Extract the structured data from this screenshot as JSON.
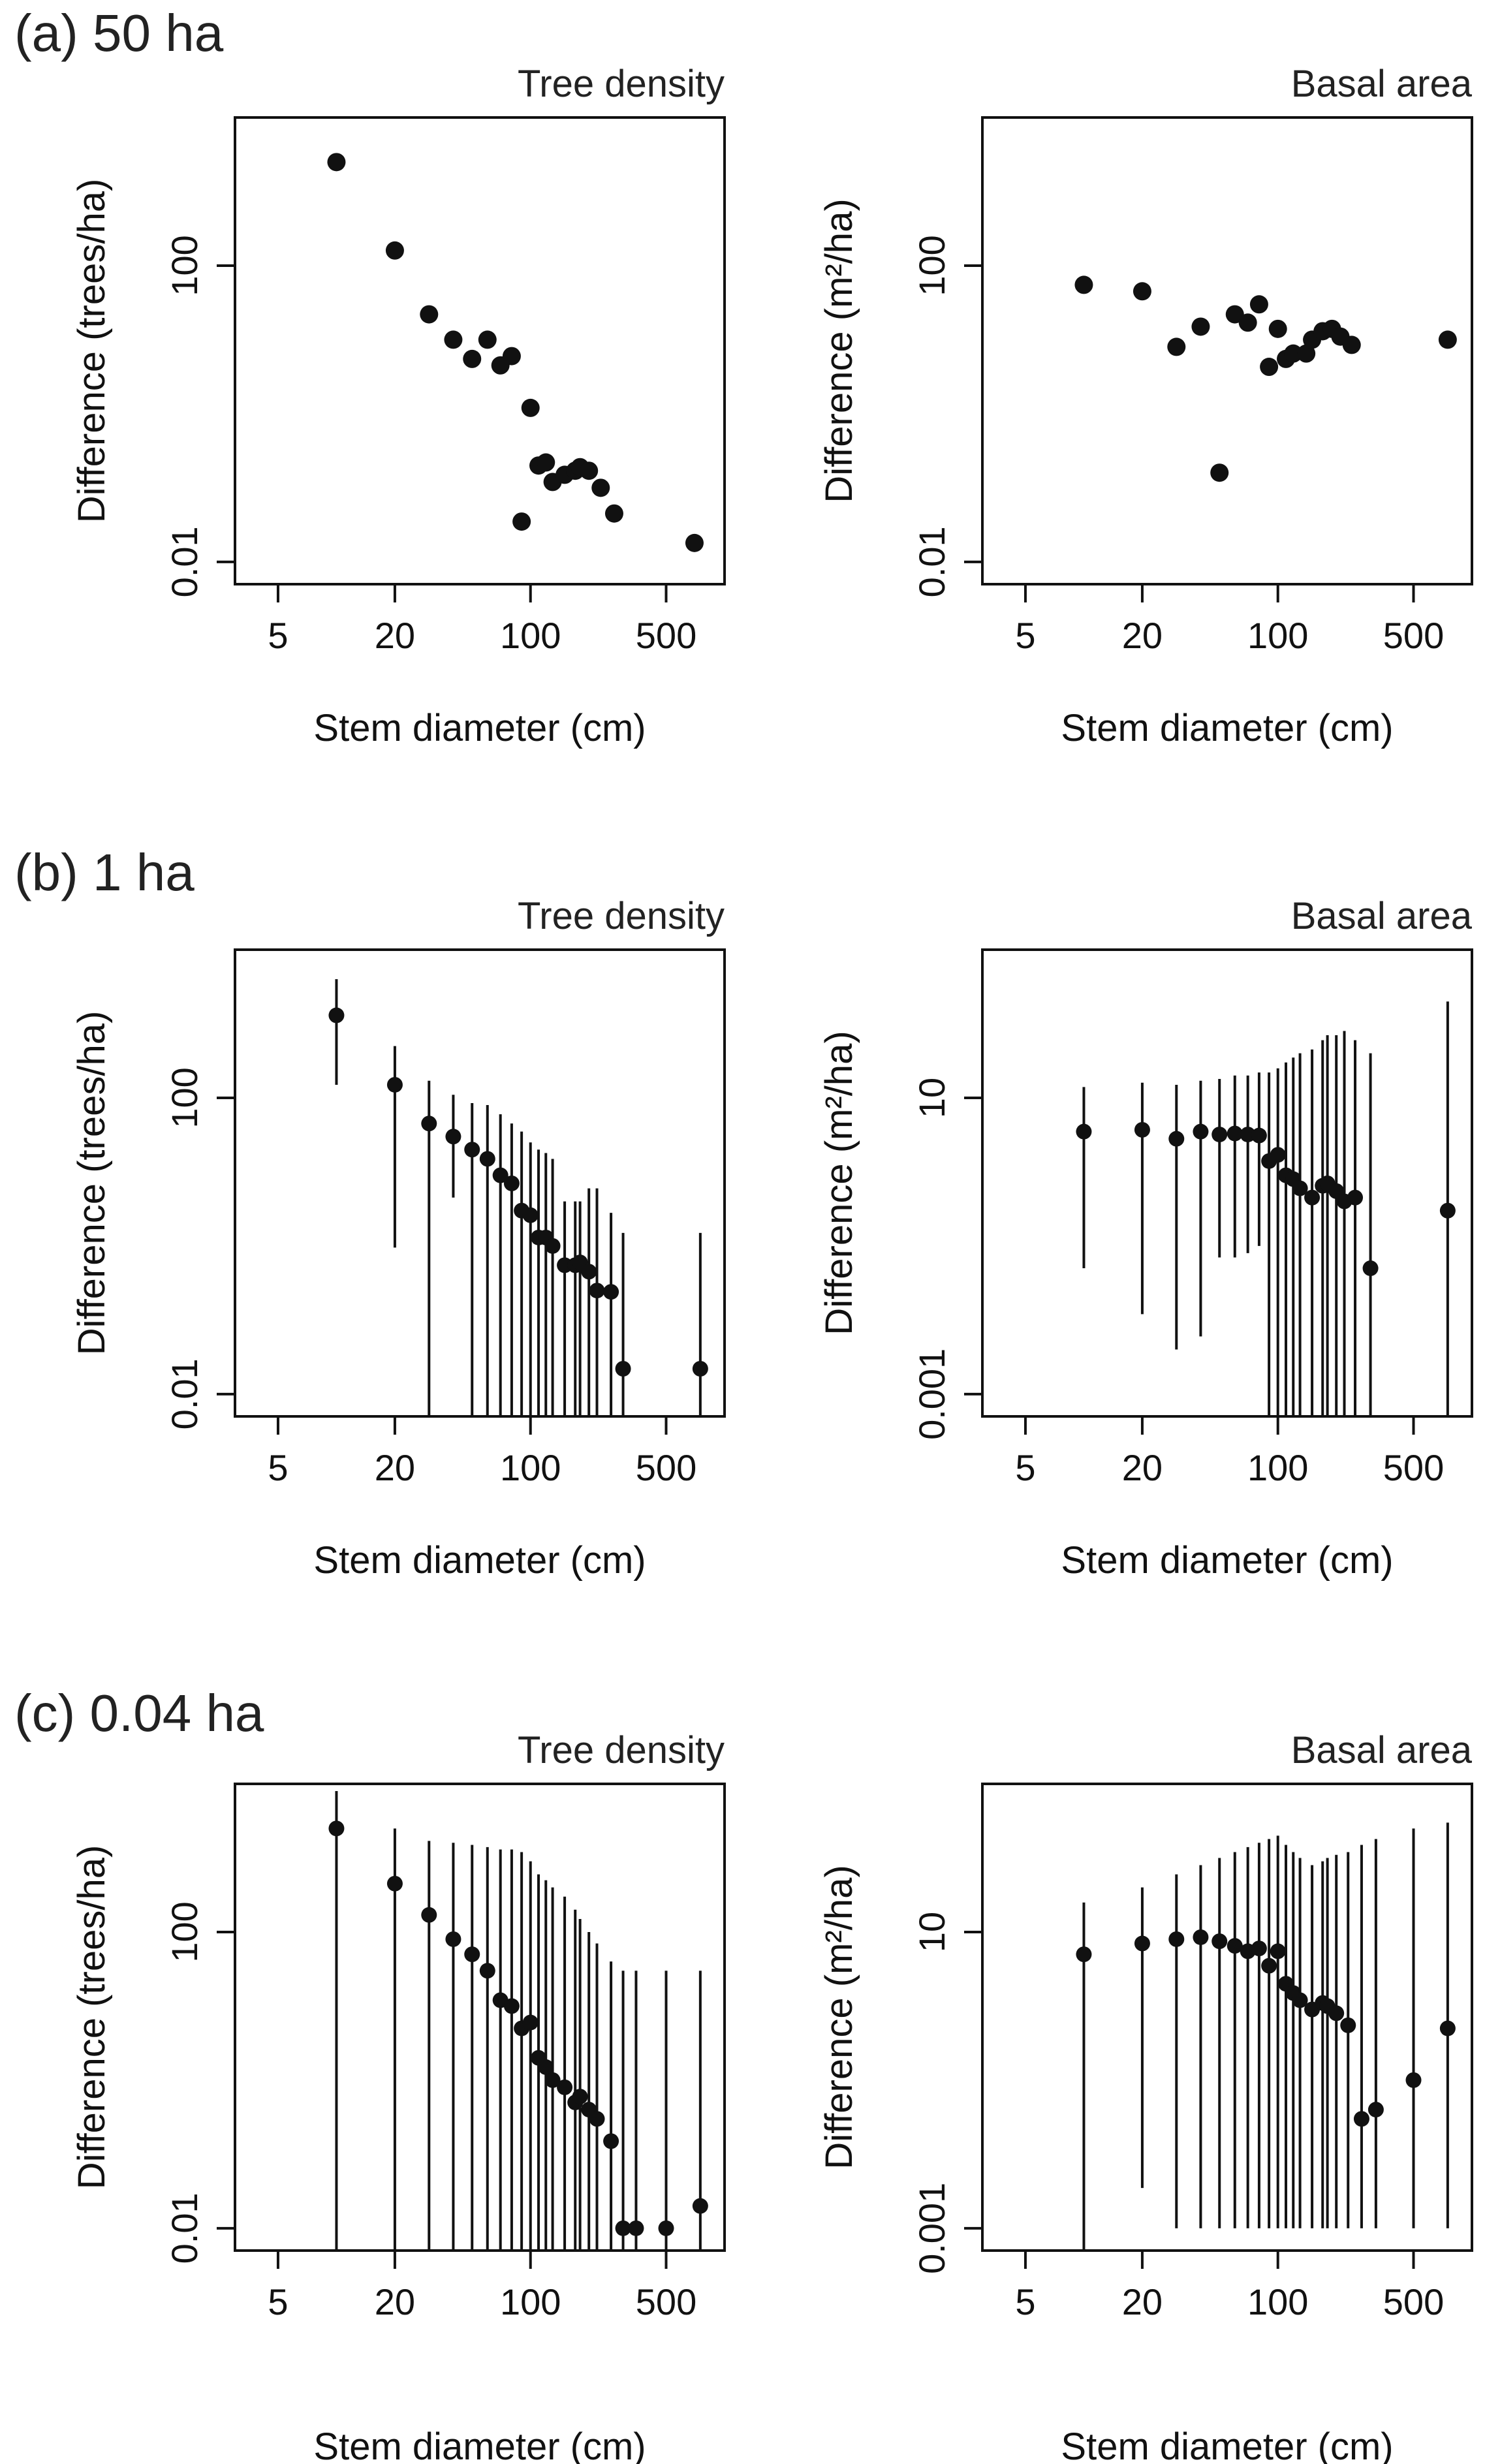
{
  "chart_data": [
    {
      "id": "a-density",
      "row": 0,
      "col": 0,
      "type": "scatter",
      "title": "Tree density",
      "xlabel": "Stem diameter (cm)",
      "ylabel": "Difference (trees/ha)",
      "xscale": "log",
      "yscale": "log",
      "xlim": [
        3,
        1000
      ],
      "ylim": [
        0.005,
        10000
      ],
      "xticks": [
        5,
        20,
        100,
        500
      ],
      "xtick_labels": [
        "5",
        "20",
        "100",
        "500"
      ],
      "yticks": [
        0.01,
        100
      ],
      "ytick_labels": [
        "0.01",
        "100"
      ],
      "points": [
        {
          "x": 10,
          "y": 2500
        },
        {
          "x": 20,
          "y": 160
        },
        {
          "x": 30,
          "y": 22
        },
        {
          "x": 40,
          "y": 10
        },
        {
          "x": 50,
          "y": 5.5
        },
        {
          "x": 60,
          "y": 10
        },
        {
          "x": 70,
          "y": 4.5
        },
        {
          "x": 80,
          "y": 6
        },
        {
          "x": 100,
          "y": 1.2
        },
        {
          "x": 110,
          "y": 0.2
        },
        {
          "x": 120,
          "y": 0.22
        },
        {
          "x": 130,
          "y": 0.12
        },
        {
          "x": 150,
          "y": 0.15
        },
        {
          "x": 170,
          "y": 0.17
        },
        {
          "x": 180,
          "y": 0.19
        },
        {
          "x": 200,
          "y": 0.17
        },
        {
          "x": 230,
          "y": 0.1
        },
        {
          "x": 270,
          "y": 0.045
        },
        {
          "x": 90,
          "y": 0.035
        },
        {
          "x": 700,
          "y": 0.018
        }
      ]
    },
    {
      "id": "a-basal",
      "row": 0,
      "col": 1,
      "type": "scatter",
      "title": "Basal area",
      "xlabel": "Stem diameter (cm)",
      "ylabel": "Difference (m²/ha)",
      "xscale": "log",
      "yscale": "log",
      "xlim": [
        3,
        1000
      ],
      "ylim": [
        0.005,
        10000
      ],
      "xticks": [
        5,
        20,
        100,
        500
      ],
      "xtick_labels": [
        "5",
        "20",
        "100",
        "500"
      ],
      "yticks": [
        0.01,
        100
      ],
      "ytick_labels": [
        "0.01",
        "100"
      ],
      "points": [
        {
          "x": 10,
          "y": 55
        },
        {
          "x": 20,
          "y": 45
        },
        {
          "x": 30,
          "y": 8
        },
        {
          "x": 40,
          "y": 15
        },
        {
          "x": 50,
          "y": 0.16
        },
        {
          "x": 60,
          "y": 22
        },
        {
          "x": 70,
          "y": 17
        },
        {
          "x": 80,
          "y": 30
        },
        {
          "x": 90,
          "y": 4.3
        },
        {
          "x": 100,
          "y": 14
        },
        {
          "x": 110,
          "y": 5.5
        },
        {
          "x": 120,
          "y": 6.5
        },
        {
          "x": 140,
          "y": 6.5
        },
        {
          "x": 150,
          "y": 10
        },
        {
          "x": 170,
          "y": 13
        },
        {
          "x": 190,
          "y": 14
        },
        {
          "x": 210,
          "y": 11
        },
        {
          "x": 240,
          "y": 8.5
        },
        {
          "x": 750,
          "y": 10
        }
      ]
    },
    {
      "id": "b-density",
      "row": 1,
      "col": 0,
      "type": "scatter-errorbar",
      "title": "Tree density",
      "xlabel": "Stem diameter (cm)",
      "ylabel": "Difference (trees/ha)",
      "xscale": "log",
      "yscale": "log",
      "xlim": [
        3,
        1000
      ],
      "ylim": [
        0.005,
        10000
      ],
      "xticks": [
        5,
        20,
        100,
        500
      ],
      "xtick_labels": [
        "5",
        "20",
        "100",
        "500"
      ],
      "yticks": [
        0.01,
        100
      ],
      "ytick_labels": [
        "0.01",
        "100"
      ],
      "points": [
        {
          "x": 10,
          "y": 1300,
          "lo": 150,
          "hi": 4000
        },
        {
          "x": 20,
          "y": 150,
          "lo": 0.95,
          "hi": 500
        },
        {
          "x": 30,
          "y": 45,
          "lo": 0.005,
          "hi": 170
        },
        {
          "x": 40,
          "y": 30,
          "lo": 4.5,
          "hi": 110
        },
        {
          "x": 50,
          "y": 20,
          "lo": 0.005,
          "hi": 85
        },
        {
          "x": 60,
          "y": 15,
          "lo": 0.005,
          "hi": 80
        },
        {
          "x": 70,
          "y": 9,
          "lo": 0.005,
          "hi": 60
        },
        {
          "x": 80,
          "y": 7,
          "lo": 0.005,
          "hi": 45
        },
        {
          "x": 90,
          "y": 3,
          "lo": 0.005,
          "hi": 35
        },
        {
          "x": 100,
          "y": 2.6,
          "lo": 0.005,
          "hi": 25
        },
        {
          "x": 110,
          "y": 1.3,
          "lo": 0.005,
          "hi": 20
        },
        {
          "x": 120,
          "y": 1.3,
          "lo": 0.005,
          "hi": 18
        },
        {
          "x": 130,
          "y": 1,
          "lo": 0.005,
          "hi": 15
        },
        {
          "x": 150,
          "y": 0.55,
          "lo": 0.005,
          "hi": 4
        },
        {
          "x": 170,
          "y": 0.55,
          "lo": 0.005,
          "hi": 4
        },
        {
          "x": 180,
          "y": 0.6,
          "lo": 0.005,
          "hi": 4
        },
        {
          "x": 200,
          "y": 0.45,
          "lo": 0.005,
          "hi": 6
        },
        {
          "x": 220,
          "y": 0.25,
          "lo": 0.005,
          "hi": 6
        },
        {
          "x": 260,
          "y": 0.24,
          "lo": 0.005,
          "hi": 2.8
        },
        {
          "x": 300,
          "y": 0.022,
          "lo": 0.005,
          "hi": 1.5
        },
        {
          "x": 750,
          "y": 0.022,
          "lo": 0.005,
          "hi": 1.5
        }
      ]
    },
    {
      "id": "b-basal",
      "row": 1,
      "col": 1,
      "type": "scatter-errorbar",
      "title": "Basal area",
      "xlabel": "Stem diameter (cm)",
      "ylabel": "Difference (m²/ha)",
      "xscale": "log",
      "yscale": "log",
      "xlim": [
        3,
        1000
      ],
      "ylim": [
        0.0005,
        1000
      ],
      "xticks": [
        5,
        20,
        100,
        500
      ],
      "xtick_labels": [
        "5",
        "20",
        "100",
        "500"
      ],
      "yticks": [
        0.001,
        10
      ],
      "ytick_labels": [
        "0.001",
        "10"
      ],
      "points": [
        {
          "x": 10,
          "y": 3.5,
          "lo": 0.05,
          "hi": 14
        },
        {
          "x": 20,
          "y": 3.7,
          "lo": 0.012,
          "hi": 16
        },
        {
          "x": 30,
          "y": 2.8,
          "lo": 0.004,
          "hi": 15
        },
        {
          "x": 40,
          "y": 3.5,
          "lo": 0.006,
          "hi": 17
        },
        {
          "x": 50,
          "y": 3.2,
          "lo": 0.07,
          "hi": 18
        },
        {
          "x": 60,
          "y": 3.3,
          "lo": 0.07,
          "hi": 20
        },
        {
          "x": 70,
          "y": 3.2,
          "lo": 0.08,
          "hi": 20
        },
        {
          "x": 80,
          "y": 3.1,
          "lo": 0.1,
          "hi": 22
        },
        {
          "x": 90,
          "y": 1.4,
          "lo": 0.0005,
          "hi": 22
        },
        {
          "x": 100,
          "y": 1.7,
          "lo": 0.0005,
          "hi": 25
        },
        {
          "x": 110,
          "y": 0.9,
          "lo": 0.0005,
          "hi": 30
        },
        {
          "x": 120,
          "y": 0.8,
          "lo": 0.0005,
          "hi": 35
        },
        {
          "x": 130,
          "y": 0.6,
          "lo": 0.0005,
          "hi": 40
        },
        {
          "x": 150,
          "y": 0.45,
          "lo": 0.0005,
          "hi": 45
        },
        {
          "x": 170,
          "y": 0.65,
          "lo": 0.0005,
          "hi": 60
        },
        {
          "x": 180,
          "y": 0.7,
          "lo": 0.0005,
          "hi": 70
        },
        {
          "x": 200,
          "y": 0.55,
          "lo": 0.0005,
          "hi": 70
        },
        {
          "x": 220,
          "y": 0.4,
          "lo": 0.0005,
          "hi": 80
        },
        {
          "x": 250,
          "y": 0.45,
          "lo": 0.0005,
          "hi": 60
        },
        {
          "x": 300,
          "y": 0.05,
          "lo": 0.0005,
          "hi": 40
        },
        {
          "x": 750,
          "y": 0.3,
          "lo": 0.0005,
          "hi": 200
        }
      ]
    },
    {
      "id": "c-density",
      "row": 2,
      "col": 0,
      "type": "scatter-errorbar",
      "title": "Tree density",
      "xlabel": "Stem diameter (cm)",
      "ylabel": "Difference (trees/ha)",
      "xscale": "log",
      "yscale": "log",
      "xlim": [
        3,
        1000
      ],
      "ylim": [
        0.005,
        10000
      ],
      "xticks": [
        5,
        20,
        100,
        500
      ],
      "xtick_labels": [
        "5",
        "20",
        "100",
        "500"
      ],
      "yticks": [
        0.01,
        100
      ],
      "ytick_labels": [
        "0.01",
        "100"
      ],
      "points": [
        {
          "x": 10,
          "y": 2500,
          "lo": 0.005,
          "hi": 8000
        },
        {
          "x": 20,
          "y": 450,
          "lo": 0.005,
          "hi": 2500
        },
        {
          "x": 30,
          "y": 170,
          "lo": 0.005,
          "hi": 1700
        },
        {
          "x": 40,
          "y": 80,
          "lo": 0.005,
          "hi": 1600
        },
        {
          "x": 50,
          "y": 50,
          "lo": 0.005,
          "hi": 1500
        },
        {
          "x": 60,
          "y": 30,
          "lo": 0.005,
          "hi": 1400
        },
        {
          "x": 70,
          "y": 12,
          "lo": 0.005,
          "hi": 1300
        },
        {
          "x": 80,
          "y": 10,
          "lo": 0.005,
          "hi": 1300
        },
        {
          "x": 90,
          "y": 5,
          "lo": 0.005,
          "hi": 1200
        },
        {
          "x": 100,
          "y": 6,
          "lo": 0.005,
          "hi": 900
        },
        {
          "x": 110,
          "y": 2,
          "lo": 0.005,
          "hi": 600
        },
        {
          "x": 120,
          "y": 1.5,
          "lo": 0.005,
          "hi": 500
        },
        {
          "x": 130,
          "y": 1,
          "lo": 0.005,
          "hi": 400
        },
        {
          "x": 150,
          "y": 0.8,
          "lo": 0.005,
          "hi": 300
        },
        {
          "x": 170,
          "y": 0.5,
          "lo": 0.005,
          "hi": 200
        },
        {
          "x": 180,
          "y": 0.6,
          "lo": 0.005,
          "hi": 150
        },
        {
          "x": 200,
          "y": 0.4,
          "lo": 0.005,
          "hi": 100
        },
        {
          "x": 220,
          "y": 0.3,
          "lo": 0.005,
          "hi": 70
        },
        {
          "x": 260,
          "y": 0.15,
          "lo": 0.005,
          "hi": 40
        },
        {
          "x": 300,
          "y": 0.01,
          "lo": 0.005,
          "hi": 30
        },
        {
          "x": 350,
          "y": 0.01,
          "lo": 0.005,
          "hi": 30
        },
        {
          "x": 500,
          "y": 0.01,
          "lo": 0.005,
          "hi": 30
        },
        {
          "x": 750,
          "y": 0.02,
          "lo": 0.005,
          "hi": 30
        }
      ]
    },
    {
      "id": "c-basal",
      "row": 2,
      "col": 1,
      "type": "scatter-errorbar",
      "title": "Basal area",
      "xlabel": "Stem diameter (cm)",
      "ylabel": "Difference (m²/ha)",
      "xscale": "log",
      "yscale": "log",
      "xlim": [
        3,
        1000
      ],
      "ylim": [
        0.0005,
        1000
      ],
      "xticks": [
        5,
        20,
        100,
        500
      ],
      "xtick_labels": [
        "5",
        "20",
        "100",
        "500"
      ],
      "yticks": [
        0.001,
        10
      ],
      "ytick_labels": [
        "0.001",
        "10"
      ],
      "points": [
        {
          "x": 10,
          "y": 5,
          "lo": 0.0005,
          "hi": 25
        },
        {
          "x": 20,
          "y": 7,
          "lo": 0.0035,
          "hi": 40
        },
        {
          "x": 30,
          "y": 8,
          "lo": 0.001,
          "hi": 60
        },
        {
          "x": 40,
          "y": 8.5,
          "lo": 0.001,
          "hi": 80
        },
        {
          "x": 50,
          "y": 7.5,
          "lo": 0.001,
          "hi": 100
        },
        {
          "x": 60,
          "y": 6.5,
          "lo": 0.001,
          "hi": 120
        },
        {
          "x": 70,
          "y": 5.5,
          "lo": 0.001,
          "hi": 140
        },
        {
          "x": 80,
          "y": 6,
          "lo": 0.001,
          "hi": 160
        },
        {
          "x": 90,
          "y": 3.5,
          "lo": 0.001,
          "hi": 180
        },
        {
          "x": 100,
          "y": 5.5,
          "lo": 0.001,
          "hi": 200
        },
        {
          "x": 110,
          "y": 2,
          "lo": 0.001,
          "hi": 150
        },
        {
          "x": 120,
          "y": 1.5,
          "lo": 0.001,
          "hi": 120
        },
        {
          "x": 130,
          "y": 1.2,
          "lo": 0.001,
          "hi": 100
        },
        {
          "x": 150,
          "y": 0.9,
          "lo": 0.001,
          "hi": 80
        },
        {
          "x": 170,
          "y": 1.1,
          "lo": 0.001,
          "hi": 90
        },
        {
          "x": 180,
          "y": 1,
          "lo": 0.001,
          "hi": 100
        },
        {
          "x": 200,
          "y": 0.8,
          "lo": 0.001,
          "hi": 110
        },
        {
          "x": 230,
          "y": 0.55,
          "lo": 0.001,
          "hi": 120
        },
        {
          "x": 270,
          "y": 0.03,
          "lo": 0.001,
          "hi": 150
        },
        {
          "x": 320,
          "y": 0.04,
          "lo": 0.001,
          "hi": 180
        },
        {
          "x": 500,
          "y": 0.1,
          "lo": 0.001,
          "hi": 250
        },
        {
          "x": 750,
          "y": 0.5,
          "lo": 0.001,
          "hi": 300
        }
      ]
    }
  ],
  "panels": [
    {
      "label": "(a) 50 ha"
    },
    {
      "label": "(b) 1 ha"
    },
    {
      "label": "(c) 0.04 ha"
    }
  ]
}
